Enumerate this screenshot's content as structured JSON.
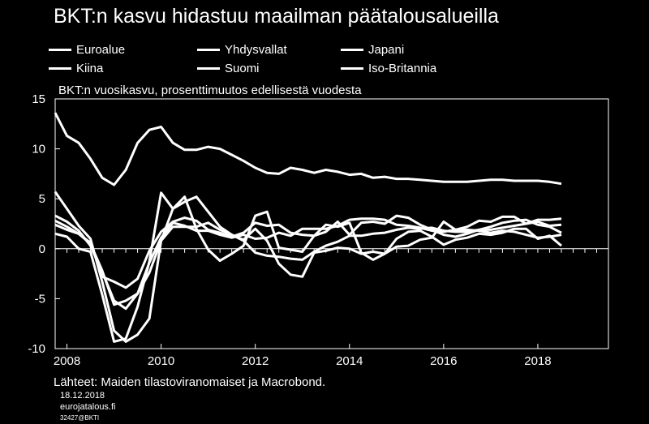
{
  "title": "BKT:n kasvu hidastuu maailman päätalousalueilla",
  "subtitle": "BKT:n vuosikasvu, prosenttimuutos edellisestä vuodesta",
  "legend": [
    "Euroalue",
    "Yhdysvallat",
    "Japani",
    "Kiina",
    "Suomi",
    "Iso-Britannia"
  ],
  "footer": {
    "source": "Lähteet: Maiden tilastoviranomaiset ja Macrobond.",
    "date": "18.12.2018",
    "site": "eurojatalous.fi",
    "code": "32427@BKTI"
  },
  "chart_data": {
    "type": "line",
    "title": "BKT:n kasvu hidastuu maailman päätalousalueilla",
    "subtitle": "BKT:n vuosikasvu, prosenttimuutos edellisestä vuodesta",
    "xlabel": "",
    "ylabel": "",
    "xlim": [
      2007.75,
      2019.5
    ],
    "ylim": [
      -10,
      15
    ],
    "xticks": [
      2008,
      2010,
      2012,
      2014,
      2016,
      2018
    ],
    "yticks": [
      15,
      10,
      5,
      0,
      -5,
      -10
    ],
    "grid": false,
    "legend_position": "top",
    "colors": {
      "background": "#000000",
      "foreground": "#ffffff",
      "lines": "#ffffff"
    },
    "x": [
      2007.75,
      2008.0,
      2008.25,
      2008.5,
      2008.75,
      2009.0,
      2009.25,
      2009.5,
      2009.75,
      2010.0,
      2010.25,
      2010.5,
      2010.75,
      2011.0,
      2011.25,
      2011.5,
      2011.75,
      2012.0,
      2012.25,
      2012.5,
      2012.75,
      2013.0,
      2013.25,
      2013.5,
      2013.75,
      2014.0,
      2014.25,
      2014.5,
      2014.75,
      2015.0,
      2015.25,
      2015.5,
      2015.75,
      2016.0,
      2016.25,
      2016.5,
      2016.75,
      2017.0,
      2017.25,
      2017.5,
      2017.75,
      2018.0,
      2018.25,
      2018.5
    ],
    "series": [
      {
        "name": "Euroalue",
        "values": [
          2.8,
          2.2,
          1.5,
          0.5,
          -2.2,
          -5.6,
          -5.2,
          -4.5,
          -2.4,
          0.8,
          2.2,
          2.2,
          2.2,
          2.6,
          1.9,
          1.4,
          0.8,
          -0.4,
          -0.7,
          -0.8,
          -1.0,
          -1.1,
          -0.3,
          0.3,
          0.7,
          1.3,
          1.3,
          1.5,
          1.6,
          1.9,
          2.1,
          2.0,
          2.1,
          1.8,
          1.7,
          1.7,
          1.9,
          2.2,
          2.6,
          2.8,
          2.9,
          2.4,
          2.2,
          1.6
        ]
      },
      {
        "name": "Yhdysvallat",
        "values": [
          2.4,
          1.9,
          1.5,
          0.6,
          -2.8,
          -3.3,
          -3.9,
          -3.0,
          -0.2,
          1.7,
          2.7,
          3.1,
          2.8,
          1.9,
          1.6,
          1.2,
          1.6,
          2.6,
          2.3,
          2.4,
          1.6,
          1.4,
          1.3,
          1.7,
          2.7,
          1.4,
          2.6,
          2.7,
          2.5,
          3.3,
          3.1,
          2.4,
          1.9,
          1.4,
          1.2,
          1.5,
          1.9,
          1.9,
          2.1,
          2.3,
          2.5,
          2.9,
          2.9,
          3.0
        ]
      },
      {
        "name": "Japani",
        "values": [
          1.5,
          1.2,
          0.0,
          -0.3,
          -4.6,
          -9.3,
          -9.0,
          -5.8,
          -1.3,
          5.6,
          4.0,
          5.2,
          2.0,
          -0.1,
          -1.2,
          -0.5,
          0.3,
          3.3,
          3.7,
          0.1,
          -0.1,
          -0.3,
          1.3,
          2.4,
          2.2,
          2.6,
          -0.4,
          -1.1,
          -0.5,
          1.0,
          1.7,
          1.8,
          1.2,
          0.4,
          0.9,
          1.1,
          1.5,
          1.4,
          1.6,
          2.0,
          2.0,
          1.0,
          1.3,
          0.3
        ]
      },
      {
        "name": "Kiina",
        "values": [
          13.6,
          11.3,
          10.6,
          9.0,
          7.1,
          6.4,
          7.9,
          10.6,
          11.9,
          12.2,
          10.6,
          9.9,
          9.9,
          10.2,
          10.0,
          9.4,
          8.8,
          8.1,
          7.6,
          7.5,
          8.1,
          7.9,
          7.6,
          7.9,
          7.7,
          7.4,
          7.5,
          7.1,
          7.2,
          7.0,
          7.0,
          6.9,
          6.8,
          6.7,
          6.7,
          6.7,
          6.8,
          6.9,
          6.9,
          6.8,
          6.8,
          6.8,
          6.7,
          6.5
        ]
      },
      {
        "name": "Suomi",
        "values": [
          5.7,
          4.0,
          2.3,
          1.0,
          -3.3,
          -8.2,
          -9.3,
          -8.6,
          -7.0,
          0.8,
          4.0,
          4.7,
          5.2,
          3.7,
          2.2,
          1.4,
          0.9,
          2.0,
          0.8,
          -1.5,
          -2.6,
          -2.8,
          -0.4,
          -0.2,
          0.1,
          0.0,
          -0.5,
          -0.3,
          -0.5,
          0.2,
          0.3,
          0.9,
          1.1,
          2.7,
          1.9,
          2.2,
          2.8,
          2.7,
          3.2,
          3.2,
          2.5,
          2.7,
          2.3,
          2.4
        ]
      },
      {
        "name": "Iso-Britannia",
        "values": [
          3.3,
          2.7,
          1.8,
          0.3,
          -2.3,
          -5.2,
          -6.0,
          -4.5,
          -1.4,
          1.1,
          2.6,
          2.3,
          1.8,
          1.8,
          1.4,
          1.1,
          1.4,
          1.0,
          1.1,
          1.6,
          1.3,
          2.0,
          2.0,
          2.0,
          2.3,
          2.9,
          3.0,
          3.0,
          2.9,
          2.4,
          2.3,
          2.1,
          1.8,
          1.7,
          1.9,
          1.9,
          1.8,
          1.6,
          1.8,
          1.7,
          1.4,
          1.1,
          1.2,
          1.4
        ]
      }
    ]
  }
}
